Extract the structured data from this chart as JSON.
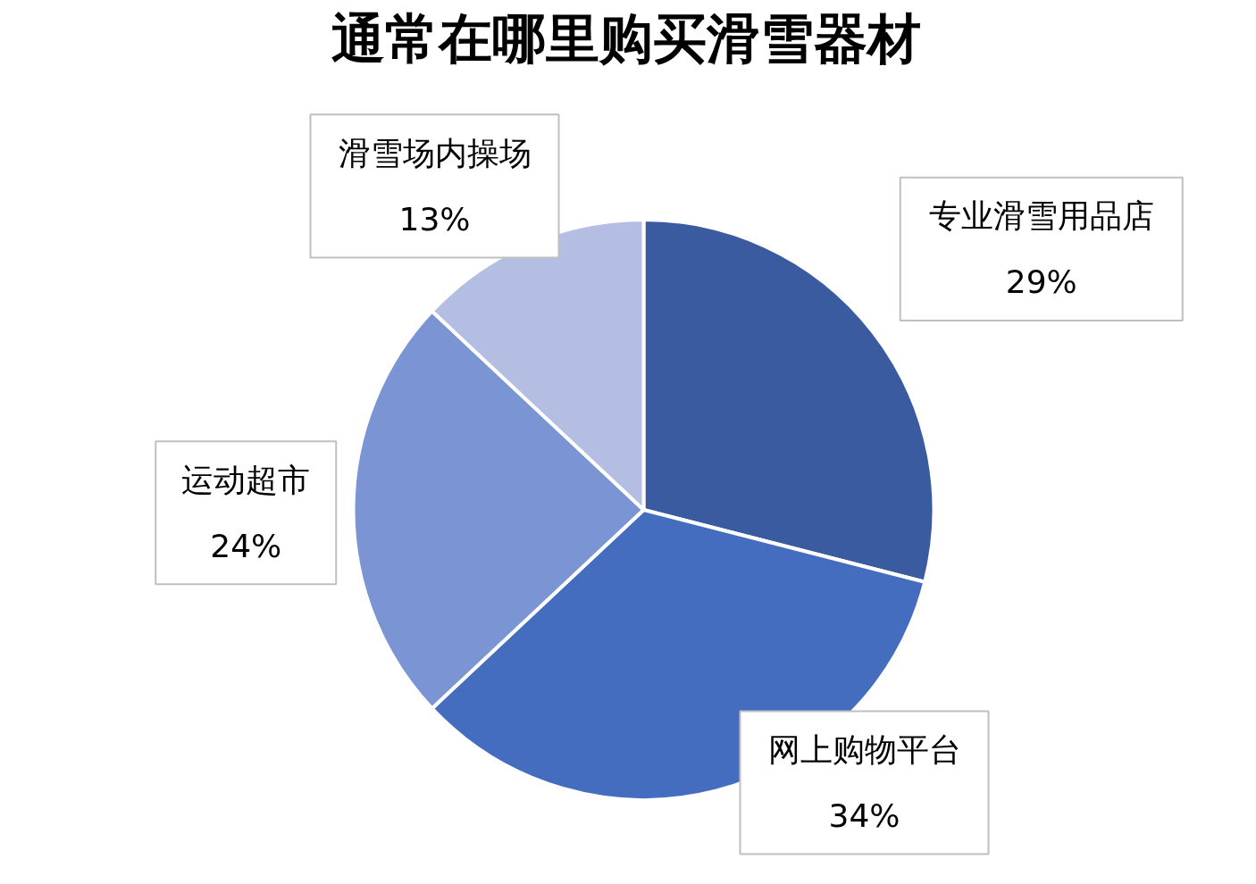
{
  "chart_data": {
    "type": "pie",
    "title": "通常在哪里购买滑雪器材",
    "categories": [
      "专业滑雪用品店",
      "网上购物平台",
      "运动超市",
      "滑雪场内操场"
    ],
    "values": [
      29,
      34,
      24,
      13
    ],
    "colors": [
      "#3a5ba0",
      "#446dbf",
      "#7b94d3",
      "#b4bee3"
    ],
    "value_labels": [
      "29%",
      "34%",
      "24%",
      "13%"
    ],
    "legend": false
  }
}
